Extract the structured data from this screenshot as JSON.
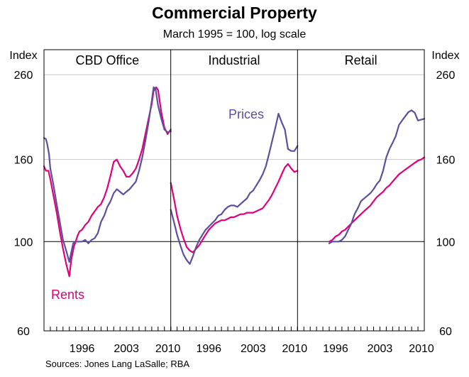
{
  "chart_data": {
    "type": "line",
    "title": "Commercial Property",
    "subtitle": "March 1995 = 100, log scale",
    "y_scale": "log",
    "ylim": [
      60,
      300
    ],
    "y_unit_label": "Index",
    "y_ticks": [
      60,
      100,
      160,
      260
    ],
    "x_ticks": [
      "1996",
      "2003",
      "2010"
    ],
    "x_range": [
      1990,
      2010
    ],
    "grid": true,
    "source": "Sources: Jones Lang LaSalle; RBA",
    "series_colors": {
      "Prices": "#5b4f9e",
      "Rents": "#e0007a"
    },
    "panels": [
      {
        "name": "CBD Office",
        "series": [
          {
            "name": "Prices",
            "label": "",
            "color": "#5b4f9e",
            "x": [
              1990,
              1990.3,
              1990.5,
              1990.8,
              1991,
              1991.5,
              1992,
              1992.5,
              1993,
              1993.5,
              1994,
              1994.3,
              1994.6,
              1995,
              1995.25,
              1995.5,
              1996,
              1996.5,
              1997,
              1997.5,
              1998,
              1998.5,
              1999,
              1999.5,
              2000,
              2000.5,
              2001,
              2001.5,
              2002,
              2002.5,
              2003,
              2003.5,
              2004,
              2004.5,
              2005,
              2005.5,
              2006,
              2006.5,
              2007,
              2007.3,
              2007.6,
              2008,
              2008.5,
              2009,
              2009.5,
              2010
            ],
            "y": [
              181,
              180,
              175,
              165,
              152,
              138,
              124,
              112,
              101,
              95,
              89,
              94,
              99,
              100,
              100,
              100,
              100,
              101,
              99,
              101,
              102,
              105,
              112,
              116,
              122,
              126,
              132,
              135,
              133,
              131,
              133,
              135,
              138,
              141,
              150,
              162,
              178,
              198,
              224,
              242,
              240,
              218,
              202,
              190,
              187,
              188
            ]
          },
          {
            "name": "Rents",
            "label": "Rents",
            "color": "#e0007a",
            "x": [
              1990,
              1990.3,
              1990.7,
              1991,
              1991.5,
              1992,
              1992.5,
              1993,
              1993.5,
              1994,
              1994.3,
              1994.7,
              1995,
              1995.25,
              1995.6,
              1996,
              1996.5,
              1997,
              1997.5,
              1998,
              1998.5,
              1999,
              1999.5,
              2000,
              2000.5,
              2001,
              2001.5,
              2002,
              2002.5,
              2003,
              2003.5,
              2004,
              2004.5,
              2005,
              2005.5,
              2006,
              2006.5,
              2007,
              2007.3,
              2007.7,
              2008,
              2008.5,
              2009,
              2009.5,
              2010
            ],
            "y": [
              154,
              150,
              150,
              143,
              130,
              118,
              106,
              96,
              88,
              82,
              90,
              97,
              100,
              103,
              106,
              107,
              110,
              112,
              116,
              119,
              122,
              124,
              129,
              136,
              146,
              158,
              160,
              154,
              150,
              145,
              145,
              148,
              152,
              160,
              170,
              185,
              202,
              220,
              237,
              242,
              238,
              210,
              192,
              185,
              190
            ]
          }
        ]
      },
      {
        "name": "Industrial",
        "series": [
          {
            "name": "Prices",
            "label": "Prices",
            "color": "#5b4f9e",
            "x": [
              1990,
              1990.5,
              1991,
              1991.5,
              1992,
              1992.5,
              1993,
              1993.5,
              1994,
              1994.5,
              1995,
              1995.5,
              1996,
              1996.5,
              1997,
              1997.5,
              1998,
              1998.5,
              1999,
              1999.5,
              2000,
              2000.5,
              2001,
              2001.5,
              2002,
              2002.5,
              2003,
              2003.5,
              2004,
              2004.5,
              2005,
              2005.5,
              2006,
              2006.5,
              2007,
              2007.5,
              2008,
              2008.5,
              2009,
              2009.5,
              2010
            ],
            "y": [
              120,
              112,
              104,
              98,
              93,
              90,
              88,
              92,
              97,
              101,
              104,
              107,
              109,
              111,
              113,
              116,
              117,
              120,
              122,
              123,
              123,
              122,
              124,
              126,
              128,
              132,
              134,
              138,
              142,
              147,
              154,
              165,
              178,
              192,
              208,
              198,
              190,
              170,
              168,
              168,
              173
            ]
          },
          {
            "name": "Rents",
            "label": "",
            "color": "#e0007a",
            "x": [
              1990,
              1990.5,
              1991,
              1991.5,
              1992,
              1992.5,
              1993,
              1993.5,
              1994,
              1994.5,
              1995,
              1995.5,
              1996,
              1996.5,
              1997,
              1997.5,
              1998,
              1998.5,
              1999,
              1999.5,
              2000,
              2000.5,
              2001,
              2001.5,
              2002,
              2002.5,
              2003,
              2003.5,
              2004,
              2004.5,
              2005,
              2005.5,
              2006,
              2006.5,
              2007,
              2007.5,
              2008,
              2008.5,
              2009,
              2009.5,
              2010
            ],
            "y": [
              140,
              128,
              116,
              108,
              102,
              97,
              95,
              94,
              96,
              98,
              101,
              104,
              107,
              109,
              111,
              112,
              113,
              113,
              114,
              115,
              115,
              116,
              117,
              117,
              118,
              118,
              118,
              119,
              120,
              121,
              124,
              127,
              131,
              136,
              141,
              147,
              153,
              156,
              152,
              149,
              150
            ]
          }
        ]
      },
      {
        "name": "Retail",
        "series": [
          {
            "name": "Prices",
            "label": "",
            "color": "#5b4f9e",
            "x": [
              1995,
              1995.5,
              1996,
              1996.5,
              1997,
              1997.5,
              1998,
              1998.5,
              1999,
              1999.5,
              2000,
              2000.5,
              2001,
              2001.5,
              2002,
              2002.5,
              2003,
              2003.5,
              2004,
              2004.5,
              2005,
              2005.5,
              2006,
              2006.5,
              2007,
              2007.5,
              2008,
              2008.5,
              2009,
              2009.5,
              2010
            ],
            "y": [
              99,
              100,
              100,
              100,
              101,
              103,
              107,
              111,
              117,
              121,
              126,
              128,
              130,
              132,
              135,
              139,
              142,
              150,
              162,
              170,
              176,
              183,
              195,
              200,
              205,
              210,
              212,
              209,
              200,
              201,
              202
            ]
          },
          {
            "name": "Rents",
            "label": "",
            "color": "#e0007a",
            "x": [
              1995,
              1995.5,
              1996,
              1996.5,
              1997,
              1997.5,
              1998,
              1998.5,
              1999,
              1999.5,
              2000,
              2000.5,
              2001,
              2001.5,
              2002,
              2002.5,
              2003,
              2003.5,
              2004,
              2004.5,
              2005,
              2005.5,
              2006,
              2006.5,
              2007,
              2007.5,
              2008,
              2008.5,
              2009,
              2009.5,
              2010
            ],
            "y": [
              100,
              101,
              103,
              104,
              106,
              107,
              109,
              111,
              113,
              115,
              117,
              119,
              121,
              123,
              126,
              129,
              131,
              133,
              136,
              138,
              141,
              144,
              147,
              149,
              151,
              153,
              155,
              157,
              159,
              160,
              162
            ]
          }
        ]
      }
    ]
  }
}
